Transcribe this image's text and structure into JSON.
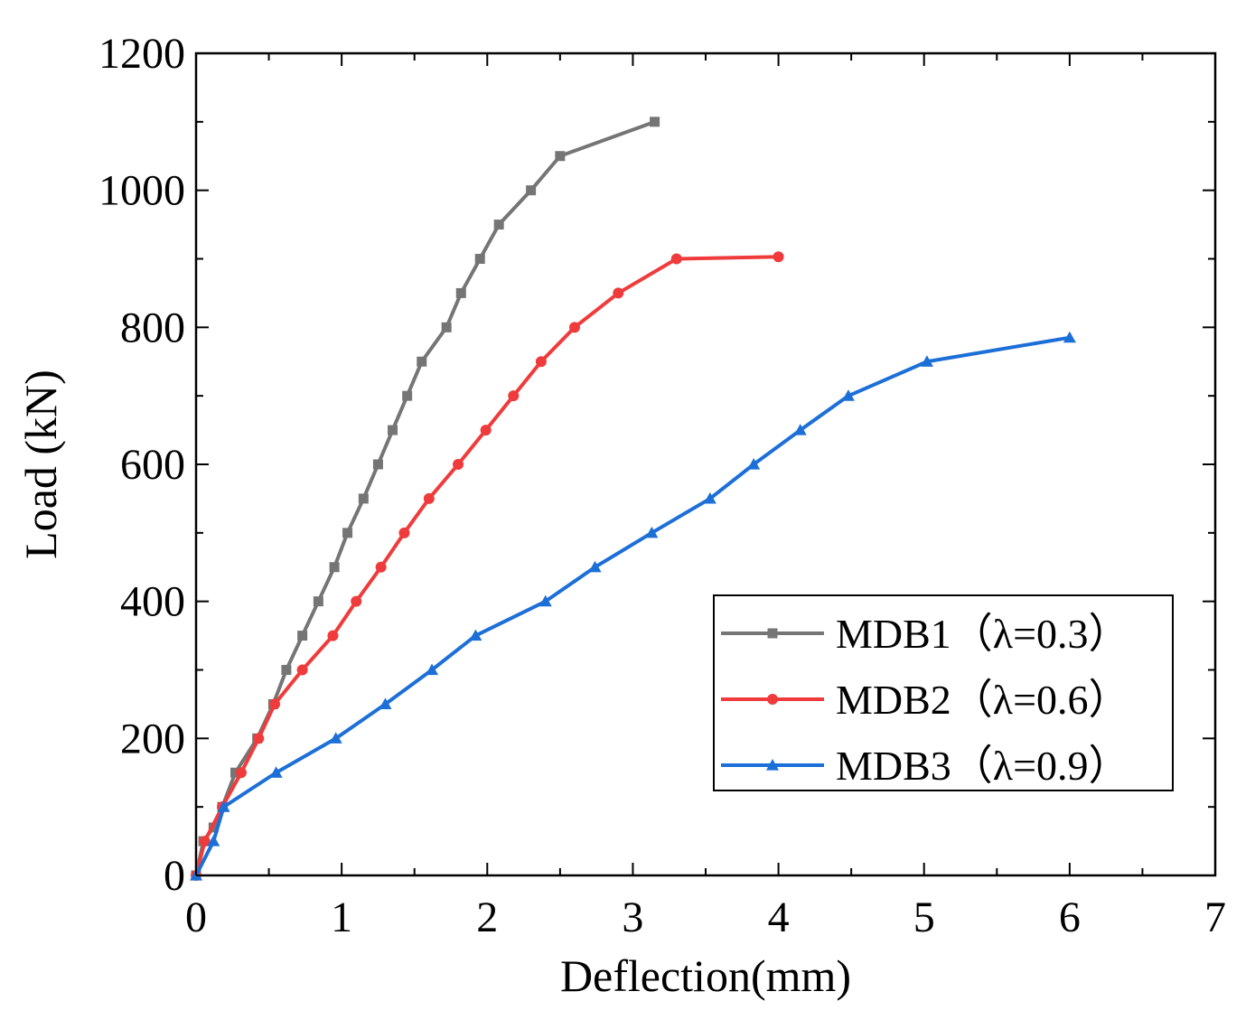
{
  "chart_data": {
    "type": "line",
    "xlabel": "Deflection(mm)",
    "ylabel": "Load (kN)",
    "xlim": [
      0,
      7
    ],
    "ylim": [
      0,
      1200
    ],
    "xticks": [
      0,
      1,
      2,
      3,
      4,
      5,
      6,
      7
    ],
    "yticks": [
      0,
      200,
      400,
      600,
      800,
      1000,
      1200
    ],
    "legend_position": "lower-right",
    "grid": false,
    "series": [
      {
        "name": "MDB1（λ=0.3）",
        "color": "#757575",
        "marker": "square",
        "x": [
          0,
          0.05,
          0.12,
          0.18,
          0.27,
          0.42,
          0.53,
          0.62,
          0.73,
          0.84,
          0.95,
          1.04,
          1.15,
          1.25,
          1.35,
          1.45,
          1.55,
          1.72,
          1.82,
          1.95,
          2.08,
          2.3,
          2.5,
          3.15
        ],
        "y": [
          0,
          50,
          70,
          100,
          150,
          200,
          250,
          300,
          350,
          400,
          450,
          500,
          550,
          600,
          650,
          700,
          750,
          800,
          850,
          900,
          950,
          1000,
          1050,
          1100
        ]
      },
      {
        "name": "MDB2（λ=0.6）",
        "color": "#ef3b3b",
        "marker": "circle",
        "x": [
          0,
          0.06,
          0.18,
          0.31,
          0.43,
          0.54,
          0.73,
          0.94,
          1.1,
          1.27,
          1.43,
          1.6,
          1.8,
          1.99,
          2.18,
          2.37,
          2.6,
          2.9,
          3.3,
          4.0
        ],
        "y": [
          0,
          50,
          100,
          150,
          200,
          250,
          300,
          350,
          400,
          450,
          500,
          550,
          600,
          650,
          700,
          750,
          800,
          850,
          900,
          903
        ]
      },
      {
        "name": "MDB3（λ=0.9）",
        "color": "#1d6fd8",
        "marker": "triangle",
        "x": [
          0,
          0.12,
          0.19,
          0.55,
          0.96,
          1.3,
          1.62,
          1.92,
          2.4,
          2.74,
          3.13,
          3.53,
          3.83,
          4.15,
          4.48,
          5.02,
          6.0
        ],
        "y": [
          0,
          50,
          100,
          150,
          200,
          250,
          300,
          350,
          400,
          450,
          500,
          550,
          600,
          650,
          700,
          750,
          785
        ]
      }
    ]
  }
}
